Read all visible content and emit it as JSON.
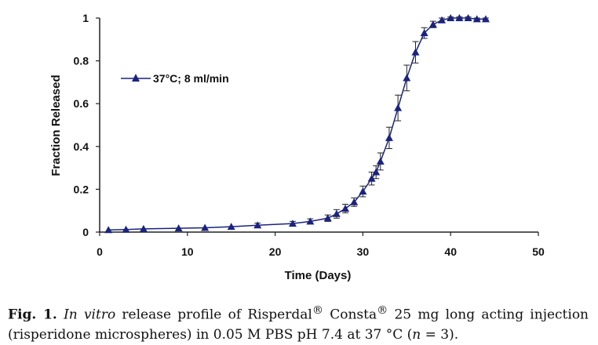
{
  "chart_data": {
    "type": "line",
    "title": "",
    "xlabel": "Time (Days)",
    "ylabel": "Fraction Released",
    "xlim": [
      0,
      50
    ],
    "ylim": [
      0,
      1
    ],
    "xticks": [
      0,
      10,
      20,
      30,
      40,
      50
    ],
    "yticks": [
      0,
      0.2,
      0.4,
      0.6,
      0.8,
      1
    ],
    "ytick_labels": [
      "0",
      "0.2",
      "0.4",
      "0.6",
      "0.8",
      "1"
    ],
    "grid": false,
    "legend_position": "top-left",
    "series": [
      {
        "name": "37°C; 8 ml/min",
        "marker": "triangle",
        "color": "#1a237e",
        "x": [
          1,
          3,
          5,
          9,
          12,
          15,
          18,
          22,
          24,
          26,
          27,
          28,
          29,
          30,
          31,
          31.5,
          32,
          33,
          34,
          35,
          36,
          37,
          38,
          39,
          40,
          41,
          42,
          43,
          44
        ],
        "y": [
          0.01,
          0.012,
          0.015,
          0.018,
          0.02,
          0.025,
          0.032,
          0.04,
          0.05,
          0.065,
          0.085,
          0.11,
          0.14,
          0.19,
          0.25,
          0.28,
          0.33,
          0.44,
          0.58,
          0.72,
          0.84,
          0.93,
          0.97,
          0.99,
          1.0,
          1.0,
          1.0,
          0.995,
          0.995
        ],
        "error": [
          0,
          0,
          0,
          0,
          0,
          0,
          0.01,
          0.01,
          0.012,
          0.015,
          0.02,
          0.02,
          0.02,
          0.025,
          0.03,
          0.03,
          0.04,
          0.05,
          0.06,
          0.06,
          0.05,
          0.025,
          0.015,
          0.01,
          0.005,
          0.005,
          0.005,
          0.005,
          0.005
        ]
      }
    ]
  },
  "caption": {
    "label": "Fig. 1.",
    "italic": "In vitro",
    "text1": " release profile of Risperdal",
    "sup1": "®",
    "text2": " Consta",
    "sup2": "®",
    "text3": " 25 mg long acting injection (risperidone microspheres) in 0.05 M PBS pH 7.4 at 37 °C (",
    "n_italic": "n",
    "text4": " = 3)."
  }
}
